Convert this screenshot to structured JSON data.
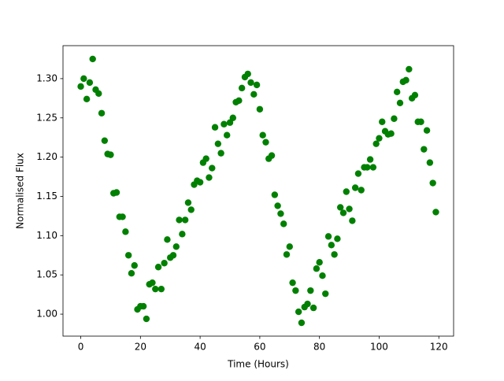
{
  "chart_data": {
    "type": "scatter",
    "x_label": "Time (Hours)",
    "y_label": "Normalised Flux",
    "color": "#008000",
    "x": [
      0,
      1,
      2,
      3,
      4,
      5,
      6,
      7,
      8,
      9,
      10,
      11,
      12,
      13,
      14,
      15,
      16,
      17,
      18,
      19,
      20,
      21,
      22,
      23,
      24,
      25,
      26,
      27,
      28,
      29,
      30,
      31,
      32,
      33,
      34,
      35,
      36,
      37,
      38,
      39,
      40,
      41,
      42,
      43,
      44,
      45,
      46,
      47,
      48,
      49,
      50,
      51,
      52,
      53,
      54,
      55,
      56,
      57,
      58,
      59,
      60,
      61,
      62,
      63,
      64,
      65,
      66,
      67,
      68,
      69,
      70,
      71,
      72,
      73,
      74,
      75,
      76,
      77,
      78,
      79,
      80,
      81,
      82,
      83,
      84,
      85,
      86,
      87,
      88,
      89,
      90,
      91,
      92,
      93,
      94,
      95,
      96,
      97,
      98,
      99,
      100,
      101,
      102,
      103,
      104,
      105,
      106,
      107,
      108,
      109,
      110,
      111,
      112,
      113,
      114,
      115,
      116,
      117,
      118,
      119
    ],
    "values": [
      1.29,
      1.3,
      1.274,
      1.295,
      1.325,
      1.286,
      1.281,
      1.256,
      1.221,
      1.204,
      1.203,
      1.154,
      1.155,
      1.124,
      1.124,
      1.105,
      1.075,
      1.052,
      1.062,
      1.006,
      1.01,
      1.01,
      0.994,
      1.038,
      1.04,
      1.032,
      1.06,
      1.032,
      1.065,
      1.095,
      1.072,
      1.075,
      1.086,
      1.12,
      1.102,
      1.12,
      1.142,
      1.133,
      1.165,
      1.17,
      1.168,
      1.193,
      1.198,
      1.174,
      1.186,
      1.238,
      1.217,
      1.205,
      1.242,
      1.228,
      1.244,
      1.25,
      1.27,
      1.272,
      1.288,
      1.302,
      1.306,
      1.295,
      1.28,
      1.292,
      1.261,
      1.228,
      1.219,
      1.198,
      1.202,
      1.152,
      1.138,
      1.128,
      1.115,
      1.076,
      1.086,
      1.04,
      1.03,
      1.003,
      0.989,
      1.009,
      1.013,
      1.03,
      1.008,
      1.058,
      1.066,
      1.049,
      1.026,
      1.099,
      1.088,
      1.076,
      1.096,
      1.136,
      1.129,
      1.156,
      1.134,
      1.119,
      1.161,
      1.179,
      1.158,
      1.187,
      1.187,
      1.197,
      1.187,
      1.217,
      1.224,
      1.245,
      1.233,
      1.229,
      1.23,
      1.249,
      1.283,
      1.269,
      1.296,
      1.298,
      1.312,
      1.275,
      1.279,
      1.245,
      1.245,
      1.21,
      1.234,
      1.193,
      1.167,
      1.13
    ],
    "xlim": [
      -5.95,
      124.95
    ],
    "ylim": [
      0.972,
      1.342
    ],
    "xticks": [
      0,
      20,
      40,
      60,
      80,
      100,
      120
    ],
    "yticks": [
      {
        "value": 1.0,
        "label": "1.00"
      },
      1.05,
      {
        "value": 1.1,
        "label": "1.10"
      },
      1.15,
      {
        "value": 1.2,
        "label": "1.20"
      },
      1.25,
      {
        "value": 1.3,
        "label": "1.30"
      }
    ],
    "grid": false
  }
}
